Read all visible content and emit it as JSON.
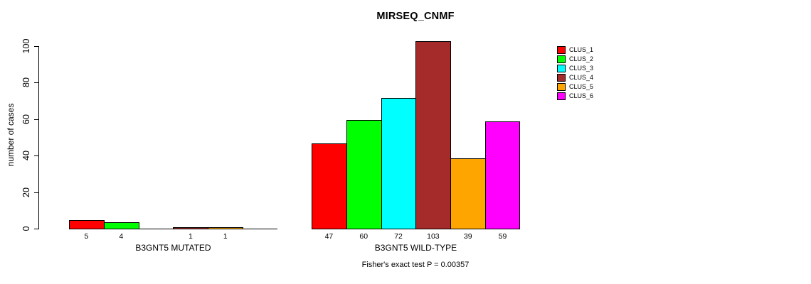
{
  "chart_data": {
    "type": "bar",
    "title": "MIRSEQ_CNMF",
    "ylabel": "number of cases",
    "ylim": [
      0,
      100
    ],
    "yticks": [
      0,
      20,
      40,
      60,
      80,
      100
    ],
    "grid": false,
    "legend_position": "top-right",
    "clusters": [
      {
        "name": "CLUS_1",
        "color": "#FF0000"
      },
      {
        "name": "CLUS_2",
        "color": "#00FF00"
      },
      {
        "name": "CLUS_3",
        "color": "#00FFFF"
      },
      {
        "name": "CLUS_4",
        "color": "#A52A2A"
      },
      {
        "name": "CLUS_5",
        "color": "#FFA500"
      },
      {
        "name": "CLUS_6",
        "color": "#FF00FF"
      }
    ],
    "groups": [
      {
        "label": "B3GNT5 MUTATED",
        "values": [
          5,
          4,
          0,
          1,
          1,
          0
        ],
        "bar_labels": [
          "5",
          "4",
          "",
          "1",
          "1",
          ""
        ]
      },
      {
        "label": "B3GNT5 WILD-TYPE",
        "values": [
          47,
          60,
          72,
          103,
          39,
          59
        ],
        "bar_labels": [
          "47",
          "60",
          "72",
          "103",
          "39",
          "59"
        ]
      }
    ],
    "footnote": "Fisher's exact test P = 0.00357"
  }
}
